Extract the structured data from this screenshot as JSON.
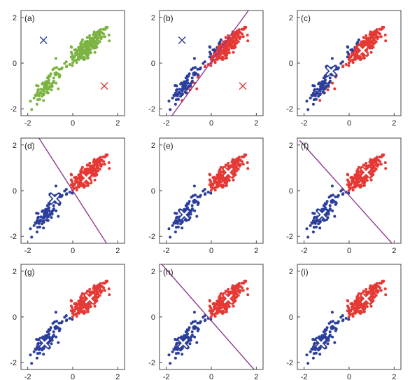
{
  "colors": {
    "green": "#7cb342",
    "blue": "#2c3e9b",
    "red": "#e53935",
    "boundary": "#8e3a8e",
    "axis": "#444444"
  },
  "chart_data": [
    {
      "type": "scatter",
      "panel_label": "(a)",
      "xlim": [
        -2.3,
        2.3
      ],
      "ylim": [
        -2.3,
        2.3
      ],
      "xticks": [
        "-2",
        "0",
        "2"
      ],
      "yticks": [
        "-2",
        "0",
        "2"
      ],
      "points": {
        "all": "green"
      },
      "centroids": [
        {
          "x": -1.3,
          "y": 1.0,
          "color": "blue",
          "style": "cross"
        },
        {
          "x": 1.4,
          "y": -1.0,
          "color": "red",
          "style": "cross"
        }
      ],
      "boundary": null
    },
    {
      "type": "scatter",
      "panel_label": "(b)",
      "xlim": [
        -2.3,
        2.3
      ],
      "ylim": [
        -2.3,
        2.3
      ],
      "xticks": [
        "-2",
        "0",
        "2"
      ],
      "yticks": [
        "-2",
        "0",
        "2"
      ],
      "points": {
        "assignment": "line",
        "params": [
          1.45,
          0.3
        ]
      },
      "centroids": [
        {
          "x": -1.3,
          "y": 1.0,
          "color": "blue",
          "style": "cross"
        },
        {
          "x": 1.4,
          "y": -1.0,
          "color": "red",
          "style": "cross"
        }
      ],
      "boundary": {
        "x1": -1.75,
        "y1": -2.3,
        "x2": 1.65,
        "y2": 2.3
      }
    },
    {
      "type": "scatter",
      "panel_label": "(c)",
      "xlim": [
        -2.3,
        2.3
      ],
      "ylim": [
        -2.3,
        2.3
      ],
      "xticks": [
        "-2",
        "0",
        "2"
      ],
      "yticks": [
        "-2",
        "0",
        "2"
      ],
      "points": {
        "assignment": "line",
        "params": [
          1.45,
          0.3
        ]
      },
      "centroids": [
        {
          "x": -0.8,
          "y": -0.35,
          "color": "blue",
          "style": "ring"
        },
        {
          "x": 0.6,
          "y": 0.55,
          "color": "red",
          "style": "ring"
        }
      ],
      "boundary": null
    },
    {
      "type": "scatter",
      "panel_label": "(d)",
      "xlim": [
        -2.3,
        2.3
      ],
      "ylim": [
        -2.3,
        2.3
      ],
      "xticks": [
        "-2",
        "0",
        "2"
      ],
      "yticks": [
        "-2",
        "0",
        "2"
      ],
      "points": {
        "assignment": "line",
        "params": [
          -1.4,
          -0.1
        ]
      },
      "centroids": [
        {
          "x": -0.8,
          "y": -0.35,
          "color": "blue",
          "style": "ring"
        },
        {
          "x": 0.6,
          "y": 0.55,
          "color": "red",
          "style": "ring"
        }
      ],
      "boundary": {
        "x1": -1.5,
        "y1": 2.3,
        "x2": 1.5,
        "y2": -2.3
      }
    },
    {
      "type": "scatter",
      "panel_label": "(e)",
      "xlim": [
        -2.3,
        2.3
      ],
      "ylim": [
        -2.3,
        2.3
      ],
      "xticks": [
        "-2",
        "0",
        "2"
      ],
      "yticks": [
        "-2",
        "0",
        "2"
      ],
      "points": {
        "assignment": "line",
        "params": [
          -1.4,
          -0.1
        ]
      },
      "centroids": [
        {
          "x": -1.2,
          "y": -1.05,
          "color": "blue",
          "style": "ring"
        },
        {
          "x": 0.75,
          "y": 0.8,
          "color": "red",
          "style": "ring"
        }
      ],
      "boundary": null
    },
    {
      "type": "scatter",
      "panel_label": "(f)",
      "xlim": [
        -2.3,
        2.3
      ],
      "ylim": [
        -2.3,
        2.3
      ],
      "xticks": [
        "-2",
        "0",
        "2"
      ],
      "yticks": [
        "-2",
        "0",
        "2"
      ],
      "points": {
        "assignment": "line",
        "params": [
          -1.0,
          -0.1
        ]
      },
      "centroids": [
        {
          "x": -1.2,
          "y": -1.05,
          "color": "blue",
          "style": "ring"
        },
        {
          "x": 0.75,
          "y": 0.8,
          "color": "red",
          "style": "ring"
        }
      ],
      "boundary": {
        "x1": -2.2,
        "y1": 2.2,
        "x2": 1.9,
        "y2": -2.3
      }
    },
    {
      "type": "scatter",
      "panel_label": "(g)",
      "xlim": [
        -2.3,
        2.3
      ],
      "ylim": [
        -2.3,
        2.3
      ],
      "xticks": [
        "-2",
        "0",
        "2"
      ],
      "yticks": [
        "-2",
        "0",
        "2"
      ],
      "points": {
        "assignment": "line",
        "params": [
          -1.0,
          -0.1
        ]
      },
      "centroids": [
        {
          "x": -1.25,
          "y": -1.15,
          "color": "blue",
          "style": "ring"
        },
        {
          "x": 0.75,
          "y": 0.8,
          "color": "red",
          "style": "ring"
        }
      ],
      "boundary": null
    },
    {
      "type": "scatter",
      "panel_label": "(h)",
      "xlim": [
        -2.3,
        2.3
      ],
      "ylim": [
        -2.3,
        2.3
      ],
      "xticks": [
        "-2",
        "0",
        "2"
      ],
      "yticks": [
        "-2",
        "0",
        "2"
      ],
      "points": {
        "assignment": "line",
        "params": [
          -1.0,
          -0.1
        ]
      },
      "centroids": [
        {
          "x": -1.25,
          "y": -1.15,
          "color": "blue",
          "style": "ring"
        },
        {
          "x": 0.75,
          "y": 0.8,
          "color": "red",
          "style": "ring"
        }
      ],
      "boundary": {
        "x1": -2.2,
        "y1": 2.3,
        "x2": 1.9,
        "y2": -2.3
      }
    },
    {
      "type": "scatter",
      "panel_label": "(i)",
      "xlim": [
        -2.3,
        2.3
      ],
      "ylim": [
        -2.3,
        2.3
      ],
      "xticks": [
        "-2",
        "0",
        "2"
      ],
      "yticks": [
        "-2",
        "0",
        "2"
      ],
      "points": {
        "assignment": "line",
        "params": [
          -1.0,
          -0.1
        ]
      },
      "centroids": [
        {
          "x": -1.25,
          "y": -1.15,
          "color": "blue",
          "style": "ring"
        },
        {
          "x": 0.75,
          "y": 0.8,
          "color": "red",
          "style": "ring"
        }
      ],
      "boundary": null
    }
  ]
}
